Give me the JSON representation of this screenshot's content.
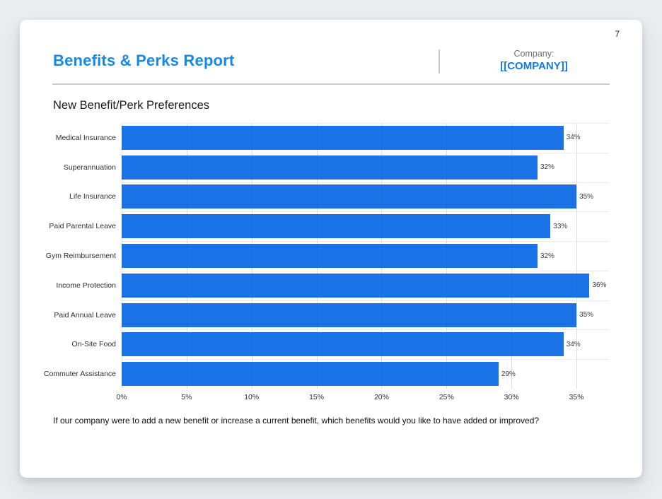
{
  "page": {
    "number": "7"
  },
  "header": {
    "title": "Benefits & Perks Report",
    "company_label": "Company:",
    "company_value": "[[COMPANY]]"
  },
  "chart": {
    "title": "New Benefit/Perk Preferences",
    "footnote": "If our company were to add a new benefit or increase a current benefit, which benefits would you like to have added or improved?"
  },
  "chart_data": {
    "type": "bar",
    "orientation": "horizontal",
    "title": "New Benefit/Perk Preferences",
    "categories": [
      "Medical Insurance",
      "Superannuation",
      "Life Insurance",
      "Paid Parental Leave",
      "Gym Reimbursement",
      "Income Protection",
      "Paid Annual Leave",
      "On-Site Food",
      "Commuter Assistance"
    ],
    "values": [
      34,
      32,
      35,
      33,
      32,
      36,
      35,
      34,
      29
    ],
    "value_labels": [
      "34%",
      "32%",
      "35%",
      "33%",
      "32%",
      "36%",
      "35%",
      "34%",
      "29%"
    ],
    "x_tick_values": [
      0,
      5,
      10,
      15,
      20,
      25,
      30,
      35
    ],
    "x_tick_labels": [
      "0%",
      "5%",
      "10%",
      "15%",
      "20%",
      "25%",
      "30%",
      "35%"
    ],
    "xlim": [
      0,
      37.5
    ],
    "xlabel": "",
    "ylabel": "",
    "legend": "none",
    "grid": "vertical",
    "bar_color": "#1172e8"
  },
  "colors": {
    "background": "#e9edf0",
    "card": "#ffffff",
    "accent_blue": "#1589e8",
    "company_blue": "#1479e8",
    "bar_blue": "#1172e8",
    "divider": "#cccccc",
    "gridline": "#dcdcdc",
    "text_dark": "#1a1a1a",
    "text_gray": "#6e6e6e"
  }
}
